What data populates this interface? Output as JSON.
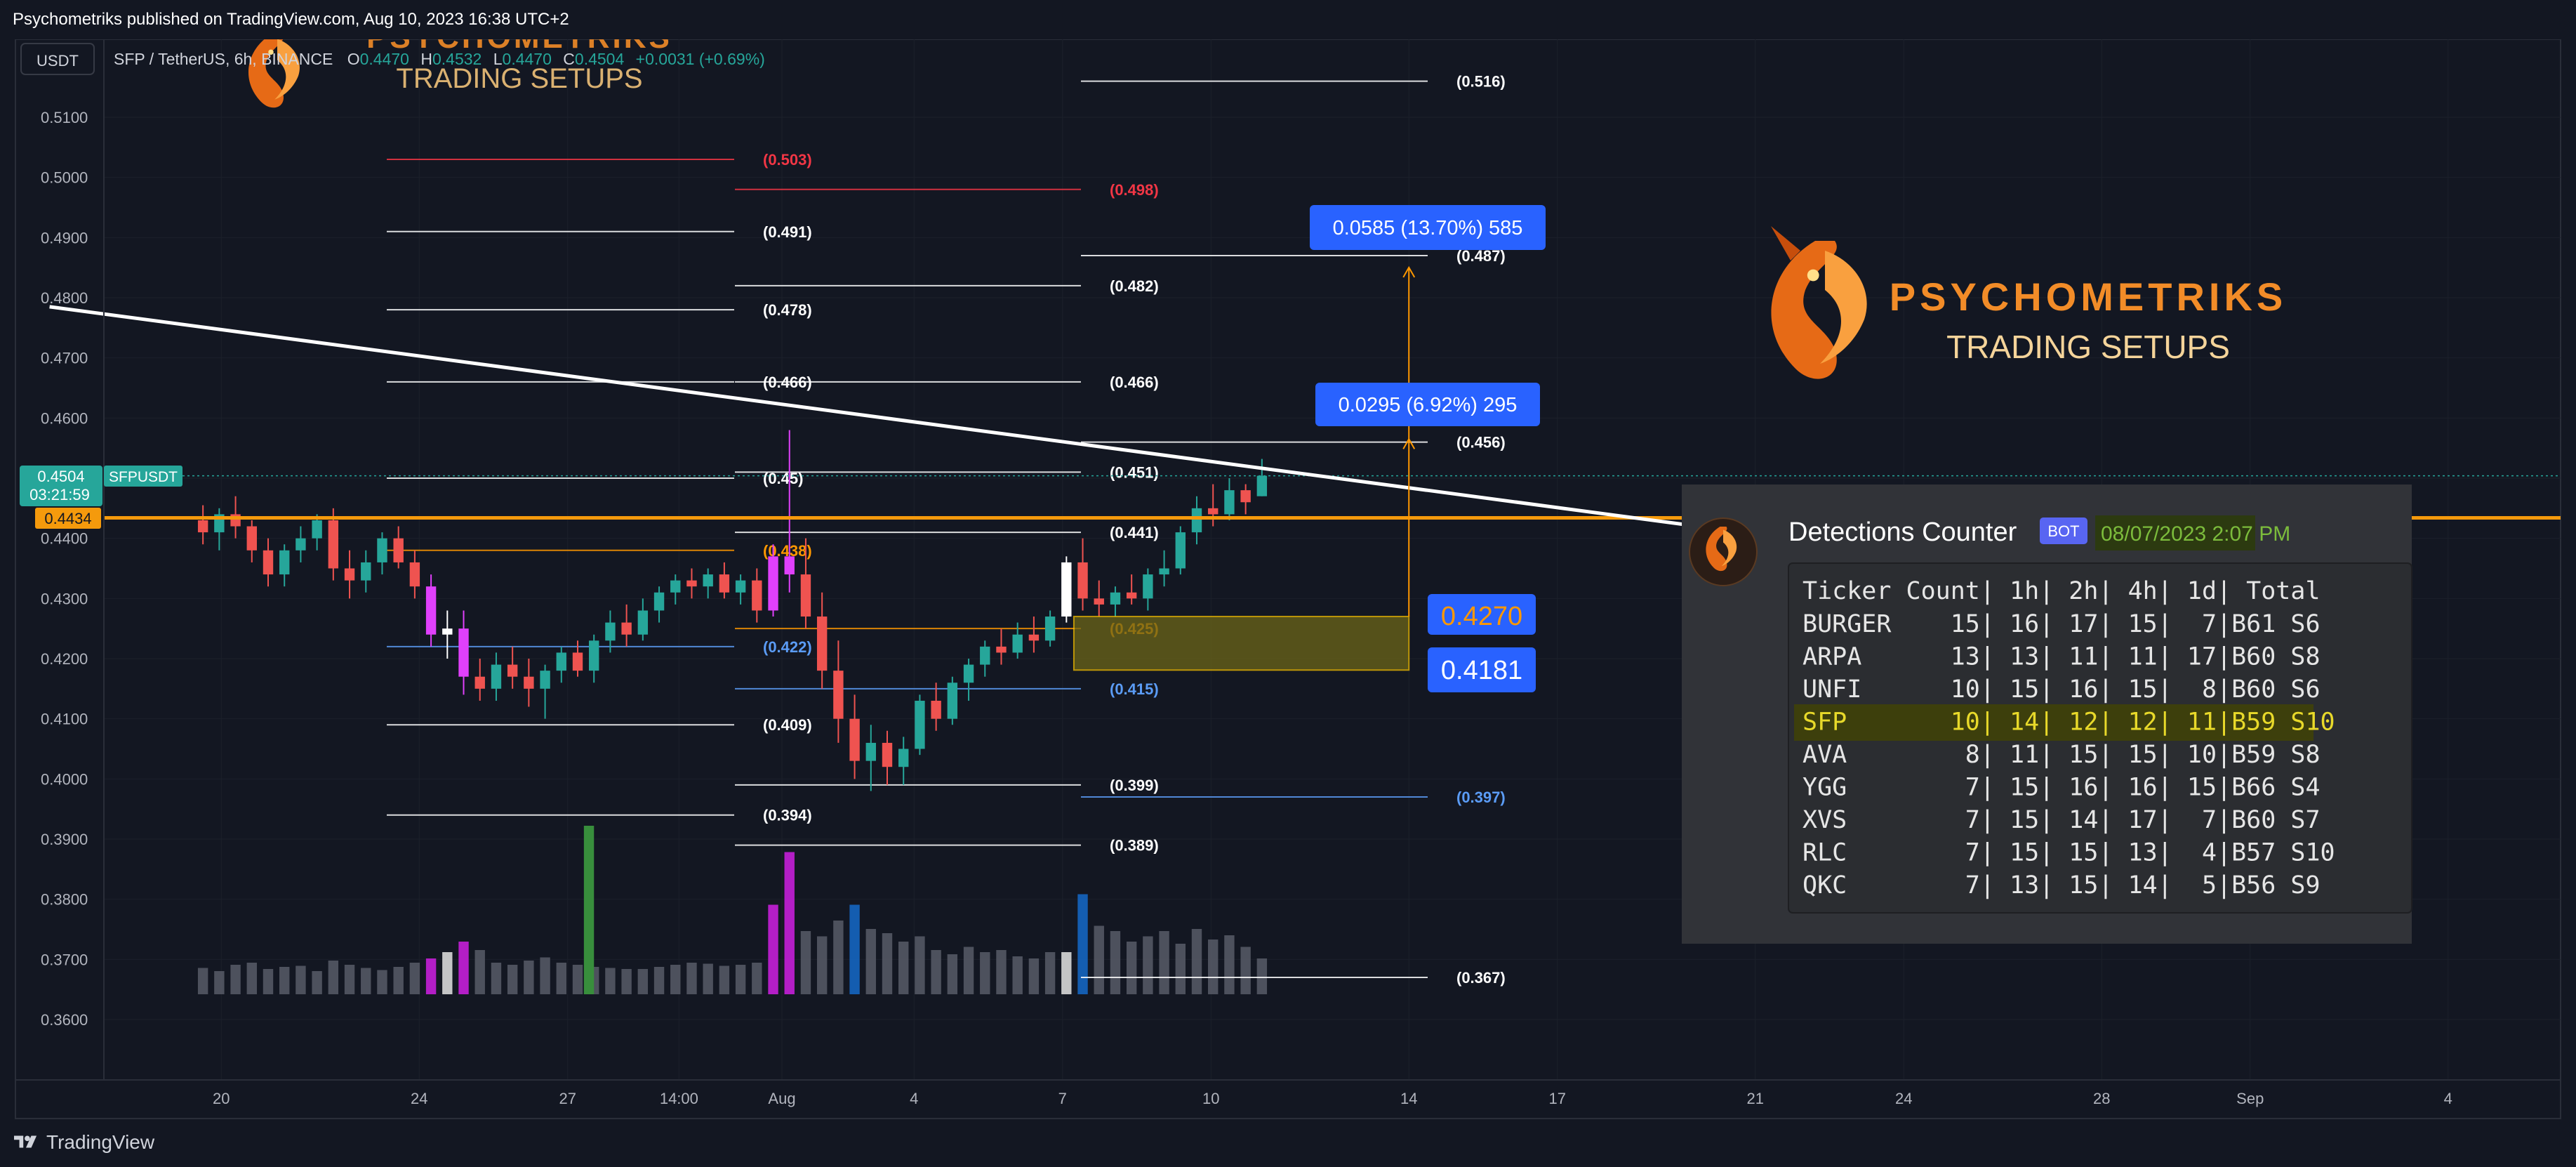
{
  "header": {
    "published_text": "Psychometriks published on TradingView.com, Aug 10, 2023 16:38 UTC+2"
  },
  "legend": {
    "currency_button": "USDT",
    "symbol": "SFP / TetherUS, 6h, BINANCE",
    "o_label": "O",
    "o_value": "0.4470",
    "h_label": "H",
    "h_value": "0.4532",
    "l_label": "L",
    "l_value": "0.4470",
    "c_label": "C",
    "c_value": "0.4504",
    "change": "+0.0031 (+0.69%)"
  },
  "price_badges": {
    "current_price": "0.4504",
    "countdown": "03:21:59",
    "symbol_tag": "SFPUSDT",
    "level_price": "0.4434"
  },
  "watermark_logo": {
    "title": "PSYCHOMETRIKS",
    "subtitle": "TRADING SETUPS"
  },
  "measure_labels": {
    "big": "0.0585 (13.70%) 585",
    "small": "0.0295 (6.92%) 295",
    "entry_price": "0.4270",
    "stop_price": "0.4181"
  },
  "detections": {
    "title": "Detections Counter",
    "bot_badge": "BOT",
    "timestamp": "08/07/2023 2:07 PM",
    "header_row": "Ticker Count| 1h| 2h| 4h| 1d| Total",
    "rows": [
      "BURGER    15| 16| 17| 15|  7|B61 S6",
      "ARPA      13| 13| 11| 11| 17|B60 S8",
      "UNFI      10| 15| 16| 15|  8|B60 S6",
      "SFP       10| 14| 12| 12| 11|B59 S10",
      "AVA        8| 11| 15| 15| 10|B59 S8",
      "YGG        7| 15| 16| 16| 15|B66 S4",
      "XVS        7| 15| 14| 17|  7|B60 S7",
      "RLC        7| 15| 15| 13|  4|B57 S10",
      "QKC        7| 13| 15| 14|  5|B56 S9"
    ],
    "highlight_row": 3
  },
  "footer": {
    "brand": "TradingView"
  },
  "chart_data": {
    "type": "candlestick",
    "title": "SFP / TetherUS, 6h, BINANCE",
    "ylim": [
      0.35,
      0.5145
    ],
    "y_ticks": [
      "0.5100",
      "0.5000",
      "0.4900",
      "0.4800",
      "0.4700",
      "0.4600",
      "0.4500",
      "0.4400",
      "0.4300",
      "0.4200",
      "0.4100",
      "0.4000",
      "0.3900",
      "0.3800",
      "0.3700",
      "0.3600"
    ],
    "y_tick_values": [
      0.51,
      0.5,
      0.49,
      0.48,
      0.47,
      0.46,
      0.45,
      0.44,
      0.43,
      0.42,
      0.41,
      0.4,
      0.39,
      0.38,
      0.37,
      0.36
    ],
    "x_ticks": [
      "20",
      "24",
      "27",
      "14:00",
      "Aug",
      "4",
      "7",
      "10",
      "14",
      "17",
      "21",
      "24",
      "28",
      "Sep",
      "4"
    ],
    "x_tick_days": [
      -11.33,
      -7.33,
      -4.33,
      -2.08,
      0,
      2.67,
      5.67,
      8.67,
      12.67,
      15.67,
      19.67,
      22.67,
      26.67,
      29.67,
      33.67
    ],
    "candles": [
      [
        0.443,
        0.4455,
        0.439,
        0.441
      ],
      [
        0.441,
        0.445,
        0.438,
        0.444
      ],
      [
        0.444,
        0.447,
        0.44,
        0.442
      ],
      [
        0.442,
        0.443,
        0.436,
        0.438
      ],
      [
        0.438,
        0.44,
        0.432,
        0.434
      ],
      [
        0.434,
        0.439,
        0.432,
        0.438
      ],
      [
        0.438,
        0.442,
        0.436,
        0.44
      ],
      [
        0.44,
        0.444,
        0.438,
        0.443
      ],
      [
        0.443,
        0.445,
        0.433,
        0.435
      ],
      [
        0.435,
        0.438,
        0.43,
        0.433
      ],
      [
        0.433,
        0.438,
        0.431,
        0.436
      ],
      [
        0.436,
        0.441,
        0.434,
        0.44
      ],
      [
        0.44,
        0.442,
        0.435,
        0.436
      ],
      [
        0.436,
        0.438,
        0.43,
        0.432
      ],
      [
        0.432,
        0.434,
        0.422,
        0.424
      ],
      [
        0.424,
        0.428,
        0.42,
        0.425
      ],
      [
        0.425,
        0.428,
        0.414,
        0.417
      ],
      [
        0.417,
        0.42,
        0.413,
        0.415
      ],
      [
        0.415,
        0.421,
        0.413,
        0.419
      ],
      [
        0.419,
        0.422,
        0.415,
        0.417
      ],
      [
        0.417,
        0.42,
        0.412,
        0.415
      ],
      [
        0.415,
        0.419,
        0.41,
        0.418
      ],
      [
        0.418,
        0.422,
        0.416,
        0.421
      ],
      [
        0.421,
        0.423,
        0.417,
        0.418
      ],
      [
        0.418,
        0.424,
        0.416,
        0.423
      ],
      [
        0.423,
        0.428,
        0.421,
        0.426
      ],
      [
        0.426,
        0.429,
        0.422,
        0.424
      ],
      [
        0.424,
        0.43,
        0.423,
        0.428
      ],
      [
        0.428,
        0.432,
        0.426,
        0.431
      ],
      [
        0.431,
        0.434,
        0.429,
        0.433
      ],
      [
        0.433,
        0.435,
        0.43,
        0.432
      ],
      [
        0.432,
        0.435,
        0.43,
        0.434
      ],
      [
        0.434,
        0.436,
        0.43,
        0.431
      ],
      [
        0.431,
        0.434,
        0.429,
        0.433
      ],
      [
        0.433,
        0.435,
        0.426,
        0.428
      ],
      [
        0.428,
        0.439,
        0.427,
        0.437
      ],
      [
        0.437,
        0.458,
        0.431,
        0.434
      ],
      [
        0.434,
        0.44,
        0.425,
        0.427
      ],
      [
        0.427,
        0.431,
        0.415,
        0.418
      ],
      [
        0.418,
        0.423,
        0.406,
        0.41
      ],
      [
        0.41,
        0.414,
        0.4,
        0.403
      ],
      [
        0.403,
        0.409,
        0.398,
        0.406
      ],
      [
        0.406,
        0.408,
        0.399,
        0.402
      ],
      [
        0.402,
        0.407,
        0.399,
        0.405
      ],
      [
        0.405,
        0.414,
        0.404,
        0.413
      ],
      [
        0.413,
        0.416,
        0.408,
        0.41
      ],
      [
        0.41,
        0.417,
        0.409,
        0.416
      ],
      [
        0.416,
        0.42,
        0.413,
        0.419
      ],
      [
        0.419,
        0.423,
        0.417,
        0.422
      ],
      [
        0.422,
        0.425,
        0.419,
        0.421
      ],
      [
        0.421,
        0.426,
        0.42,
        0.424
      ],
      [
        0.424,
        0.427,
        0.421,
        0.423
      ],
      [
        0.423,
        0.428,
        0.422,
        0.427
      ],
      [
        0.427,
        0.437,
        0.426,
        0.436
      ],
      [
        0.436,
        0.44,
        0.428,
        0.43
      ],
      [
        0.43,
        0.433,
        0.427,
        0.429
      ],
      [
        0.429,
        0.432,
        0.427,
        0.431
      ],
      [
        0.431,
        0.434,
        0.429,
        0.43
      ],
      [
        0.43,
        0.435,
        0.428,
        0.434
      ],
      [
        0.434,
        0.438,
        0.432,
        0.435
      ],
      [
        0.435,
        0.442,
        0.434,
        0.441
      ],
      [
        0.441,
        0.447,
        0.439,
        0.445
      ],
      [
        0.445,
        0.449,
        0.442,
        0.444
      ],
      [
        0.444,
        0.45,
        0.443,
        0.448
      ],
      [
        0.448,
        0.449,
        0.444,
        0.446
      ],
      [
        0.447,
        0.4532,
        0.447,
        0.4504
      ]
    ],
    "volumes": [
      0.25,
      0.22,
      0.28,
      0.3,
      0.24,
      0.26,
      0.27,
      0.22,
      0.32,
      0.28,
      0.25,
      0.23,
      0.26,
      0.3,
      0.34,
      0.4,
      0.5,
      0.42,
      0.3,
      0.28,
      0.32,
      0.35,
      0.3,
      0.28,
      0.26,
      0.25,
      0.24,
      0.24,
      0.26,
      0.28,
      0.3,
      0.29,
      0.27,
      0.28,
      0.3,
      0.85,
      1.35,
      0.6,
      0.55,
      0.7,
      0.85,
      0.62,
      0.58,
      0.5,
      0.55,
      0.42,
      0.38,
      0.45,
      0.4,
      0.42,
      0.36,
      0.34,
      0.4,
      0.4,
      0.95,
      0.65,
      0.6,
      0.5,
      0.55,
      0.6,
      0.48,
      0.62,
      0.52,
      0.56,
      0.45,
      0.34
    ],
    "trendline": {
      "x": [
        -14.8,
        29.0
      ],
      "y": [
        0.4785,
        0.4305
      ]
    },
    "horizontal_level": 0.4434,
    "fib_left": [
      {
        "label": "(0.503)",
        "value": 0.503,
        "color": "#f23645"
      },
      {
        "label": "(0.491)",
        "value": 0.491,
        "color": "#ffffff"
      },
      {
        "label": "(0.478)",
        "value": 0.478,
        "color": "#ffffff"
      },
      {
        "label": "(0.466)",
        "value": 0.466,
        "color": "#ffffff"
      },
      {
        "label": "(0.45)",
        "value": 0.45,
        "color": "#ffffff"
      },
      {
        "label": "(0.438)",
        "value": 0.438,
        "color": "#ff9800"
      },
      {
        "label": "(0.422)",
        "value": 0.422,
        "color": "#5b9cf6"
      },
      {
        "label": "(0.409)",
        "value": 0.409,
        "color": "#ffffff"
      },
      {
        "label": "(0.394)",
        "value": 0.394,
        "color": "#ffffff"
      }
    ],
    "fib_mid": [
      {
        "label": "(0.498)",
        "value": 0.498,
        "color": "#f23645"
      },
      {
        "label": "(0.482)",
        "value": 0.482,
        "color": "#ffffff"
      },
      {
        "label": "(0.466)",
        "value": 0.466,
        "color": "#ffffff"
      },
      {
        "label": "(0.451)",
        "value": 0.451,
        "color": "#ffffff"
      },
      {
        "label": "(0.441)",
        "value": 0.441,
        "color": "#ffffff"
      },
      {
        "label": "(0.425)",
        "value": 0.425,
        "color": "#ff9800"
      },
      {
        "label": "(0.415)",
        "value": 0.415,
        "color": "#5b9cf6"
      },
      {
        "label": "(0.399)",
        "value": 0.399,
        "color": "#ffffff"
      },
      {
        "label": "(0.389)",
        "value": 0.389,
        "color": "#ffffff"
      }
    ],
    "fib_right": [
      {
        "label": "(0.516)",
        "value": 0.516,
        "color": "#ffffff"
      },
      {
        "label": "(0.487)",
        "value": 0.487,
        "color": "#ffffff"
      },
      {
        "label": "(0.456)",
        "value": 0.456,
        "color": "#ffffff"
      },
      {
        "label": "(0.397)",
        "value": 0.397,
        "color": "#5b9cf6"
      },
      {
        "label": "(0.367)",
        "value": 0.367,
        "color": "#ffffff"
      }
    ],
    "measure": {
      "x": 12.67,
      "from": 0.427,
      "to_small": 0.4565,
      "to_big": 0.4855
    },
    "box": {
      "x": [
        5.9,
        12.67
      ],
      "y": [
        0.4181,
        0.427
      ]
    }
  }
}
